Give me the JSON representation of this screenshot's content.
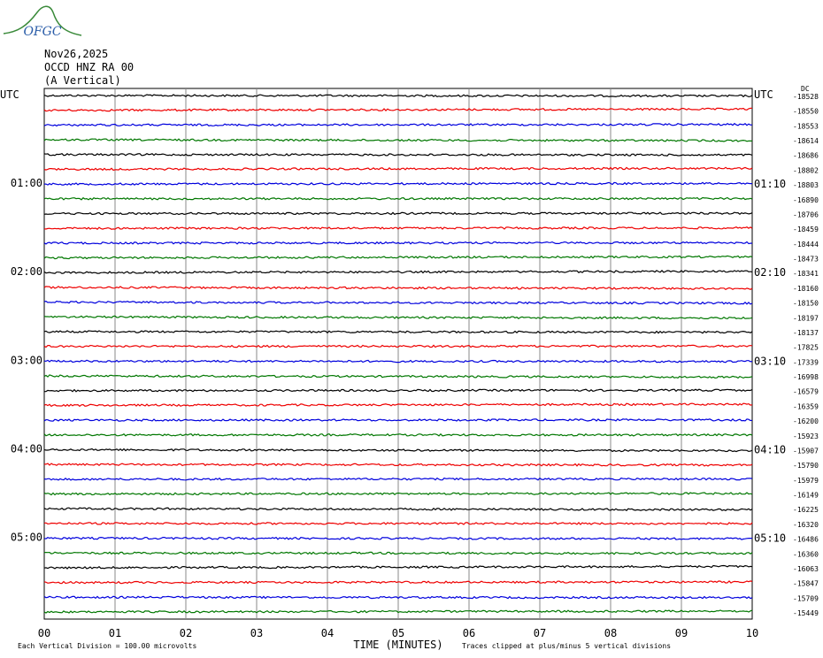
{
  "logo": "OFGC",
  "header": {
    "date": "Nov26,2025",
    "station": "OCCD HNZ RA 00",
    "component": "(A Vertical)"
  },
  "left_labels": [
    "UTC",
    "01:00",
    "02:00",
    "03:00",
    "04:00",
    "05:00"
  ],
  "right_labels": [
    "UTC",
    "01:10",
    "02:10",
    "03:10",
    "04:10",
    "05:10"
  ],
  "dc_label": "DC",
  "trace_offsets": [
    -18528,
    -18550,
    -18553,
    -18614,
    -18686,
    -18802,
    -18803,
    -16890,
    -18706,
    -18459,
    -18444,
    -18473,
    -18341,
    -18160,
    -18150,
    -18197,
    -18137,
    -17825,
    -17339,
    -16998,
    -16579,
    -16359,
    -16200,
    -15923,
    -15907,
    -15790,
    -15979,
    -16149,
    -16225,
    -16320,
    -16486,
    -16360,
    -16063,
    -15847,
    -15709,
    -15449
  ],
  "x_axis": {
    "ticks": [
      "00",
      "01",
      "02",
      "03",
      "04",
      "05",
      "06",
      "07",
      "08",
      "09",
      "10"
    ],
    "title": "TIME (MINUTES)"
  },
  "footer": {
    "scale": "Each Vertical Division =  100.00 microvolts",
    "clipping": "Traces clipped at plus/minus 5 vertical divisions"
  }
}
